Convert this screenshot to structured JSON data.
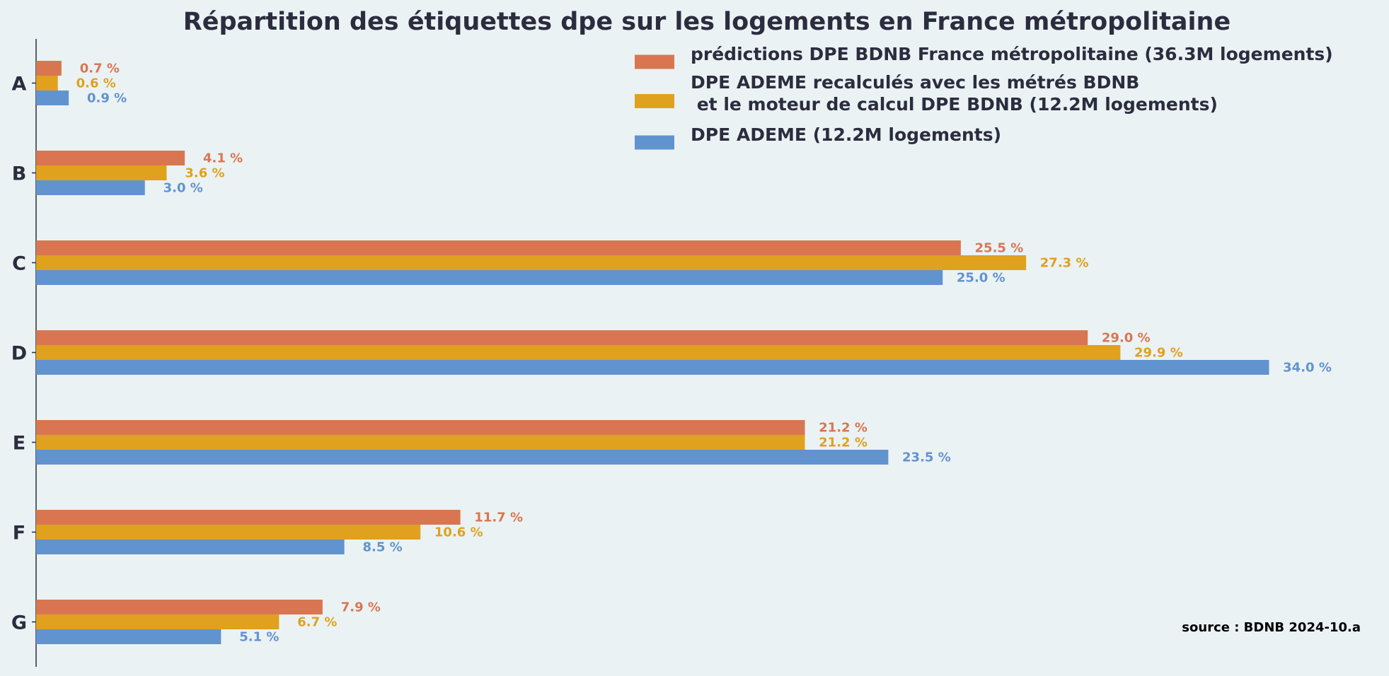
{
  "chart_data": {
    "type": "bar",
    "orientation": "horizontal",
    "title": "Répartition des étiquettes dpe sur les logements en France métropolitaine",
    "xlabel": "",
    "ylabel": "",
    "xlim": [
      0,
      36
    ],
    "grid": false,
    "legend_position": "top-right",
    "categories": [
      "A",
      "B",
      "C",
      "D",
      "E",
      "F",
      "G"
    ],
    "series": [
      {
        "name": "prédictions DPE BDNB France métropolitaine (36.3M logements)",
        "legend_lines": [
          "prédictions DPE BDNB France métropolitaine (36.3M logements)"
        ],
        "color": "#d97651",
        "values": [
          0.7,
          4.1,
          25.5,
          29.0,
          21.2,
          11.7,
          7.9
        ],
        "labels": [
          "0.7 %",
          "4.1 %",
          "25.5 %",
          "29.0 %",
          "21.2 %",
          "11.7 %",
          "7.9 %"
        ]
      },
      {
        "name": "DPE ADEME recalculés avec les métrés BDNB\n et le moteur de calcul DPE BDNB (12.2M logements)",
        "legend_lines": [
          "DPE ADEME recalculés avec les métrés BDNB",
          " et le moteur de calcul DPE BDNB (12.2M logements)"
        ],
        "color": "#e0a11f",
        "values": [
          0.6,
          3.6,
          27.3,
          29.9,
          21.2,
          10.6,
          6.7
        ],
        "labels": [
          "0.6 %",
          "3.6 %",
          "27.3 %",
          "29.9 %",
          "21.2 %",
          "10.6 %",
          "6.7 %"
        ]
      },
      {
        "name": "DPE ADEME (12.2M logements)",
        "legend_lines": [
          "DPE ADEME (12.2M logements)"
        ],
        "color": "#6193cf",
        "values": [
          0.9,
          3.0,
          25.0,
          34.0,
          23.5,
          8.5,
          5.1
        ],
        "labels": [
          "0.9 %",
          "3.0 %",
          "25.0 %",
          "34.0 %",
          "23.5 %",
          "8.5 %",
          "5.1 %"
        ]
      }
    ],
    "annotations": [
      "source : BDNB 2024-10.a"
    ]
  }
}
